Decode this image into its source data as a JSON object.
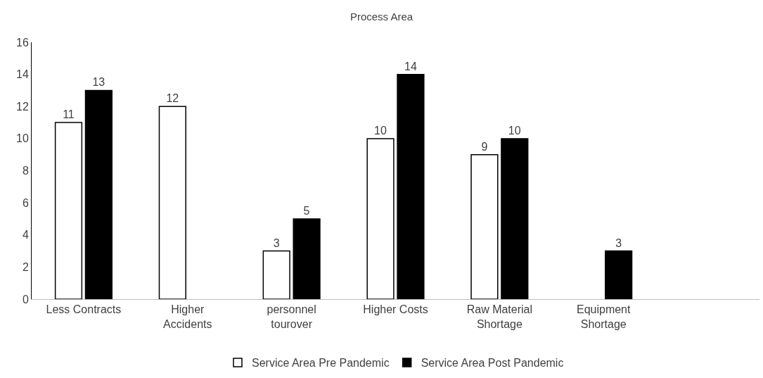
{
  "chart_data": {
    "type": "bar",
    "title": "Process Area",
    "categories": [
      "Less Contracts",
      "Higher\nAccidents",
      "personnel\ntourover",
      "Higher Costs",
      "Raw Material\nShortage",
      "Equipment\nShortage",
      null
    ],
    "series": [
      {
        "name": "Service Area Pre Pandemic",
        "color": "#ffffff",
        "values": [
          11,
          12,
          3,
          10,
          9,
          null,
          null
        ]
      },
      {
        "name": "Service Area Post Pandemic",
        "color": "#000000",
        "values": [
          13,
          null,
          5,
          14,
          10,
          3,
          null
        ]
      }
    ],
    "ylim": [
      0,
      16
    ],
    "yticks": [
      0,
      2,
      4,
      6,
      8,
      10,
      12,
      14,
      16
    ],
    "data_labels": true,
    "legend": "bottom"
  }
}
